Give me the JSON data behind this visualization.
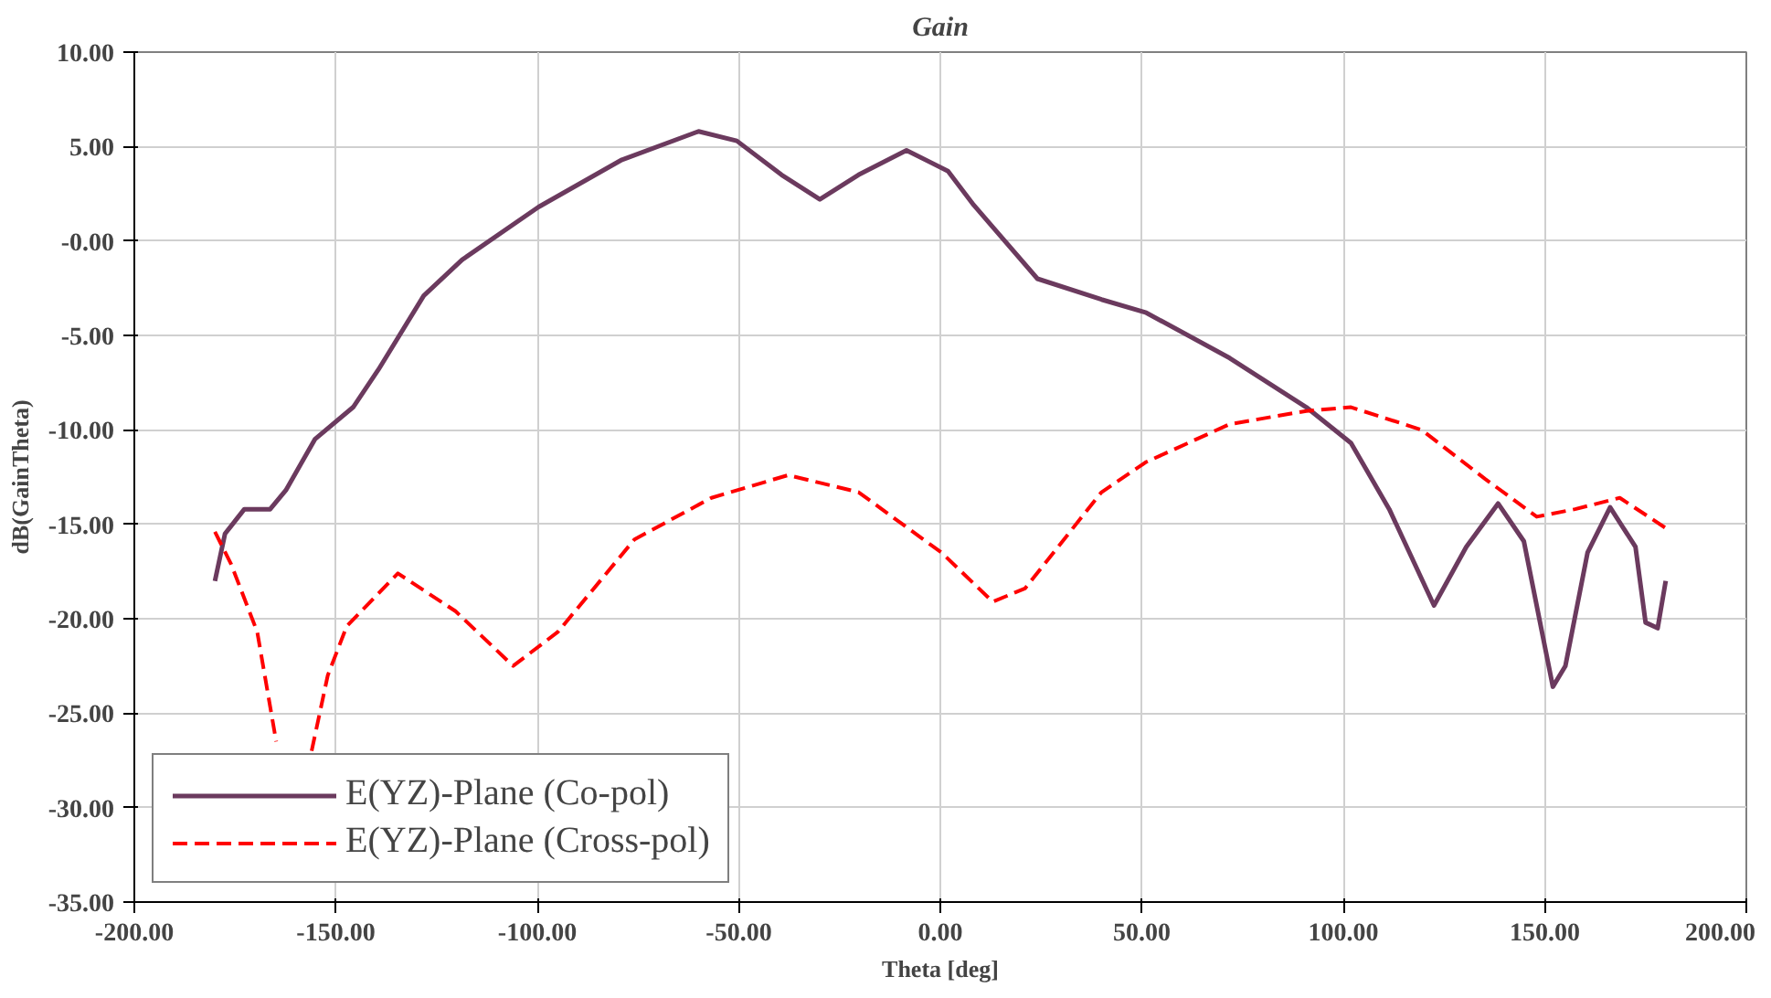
{
  "chart_data": {
    "type": "line",
    "title": "Gain",
    "xlabel": "Theta [deg]",
    "ylabel": "dB(GainTheta)",
    "xlim": [
      -200,
      200
    ],
    "xticks": [
      {
        "value": -200,
        "label": "-200.00"
      },
      {
        "value": -150,
        "label": "-150.00"
      },
      {
        "value": -100,
        "label": "-100.00"
      },
      {
        "value": -50,
        "label": "-50.00"
      },
      {
        "value": 0,
        "label": "0.00"
      },
      {
        "value": 50,
        "label": "50.00"
      },
      {
        "value": 100,
        "label": "100.00"
      },
      {
        "value": 150,
        "label": "150.00"
      },
      {
        "value": 200,
        "label": "200.00"
      }
    ],
    "ylim": [
      -35,
      10
    ],
    "yticks": [
      {
        "value": 10,
        "label": "10.00"
      },
      {
        "value": 5,
        "label": "5.00"
      },
      {
        "value": 0,
        "label": "-0.00"
      },
      {
        "value": -5,
        "label": "-5.00"
      },
      {
        "value": -10,
        "label": "-10.00"
      },
      {
        "value": -15,
        "label": "-15.00"
      },
      {
        "value": -20,
        "label": "-20.00"
      },
      {
        "value": -25,
        "label": "-25.00"
      },
      {
        "value": -30,
        "label": "-30.00"
      },
      {
        "value": -35,
        "label": "-35.00"
      }
    ],
    "grid": true,
    "legend": "bottom left",
    "series": [
      {
        "name": "E(YZ)-Plane (Co-pol)",
        "color": "#6b3a5e",
        "line_style": "solid",
        "x": [
          -180,
          -177.5,
          -172.7,
          -166.3,
          -162.4,
          -155.2,
          -145.7,
          -139.4,
          -128.2,
          -118.7,
          -99.7,
          -79,
          -60,
          -50.5,
          -39.4,
          -29.9,
          -20.3,
          -8.4,
          1.9,
          8.3,
          24.1,
          40,
          51.1,
          71.8,
          90.8,
          101.9,
          111.4,
          122.5,
          130.5,
          138.4,
          144.8,
          152,
          155.1,
          160.6,
          166.2,
          172.5,
          175,
          178,
          180
        ],
        "values": [
          -18,
          -15.5,
          -14.2,
          -14.2,
          -13.2,
          -10.5,
          -8.8,
          -6.8,
          -2.9,
          -1.0,
          1.8,
          4.3,
          5.8,
          5.3,
          3.5,
          2.2,
          3.5,
          4.8,
          3.7,
          1.9,
          -2.0,
          -3.1,
          -3.8,
          -6.2,
          -8.8,
          -10.7,
          -14.2,
          -19.3,
          -16.2,
          -13.9,
          -15.9,
          -23.6,
          -22.5,
          -16.5,
          -14.1,
          -16.2,
          -20.2,
          -20.5,
          -18
        ]
      },
      {
        "name": "E(YZ)-Plane (Cross-pol)",
        "color": "#ff0000",
        "line_style": "dashed",
        "x": [
          -180,
          -176,
          -169.5,
          -164.8,
          -160,
          -156,
          -152,
          -147.3,
          -134.6,
          -120.3,
          -106,
          -94.9,
          -75.9,
          -56.8,
          -37.8,
          -20.3,
          0.3,
          13,
          21,
          40,
          51.1,
          71.8,
          90.8,
          101.9,
          119.4,
          135.2,
          148,
          157.5,
          168.6,
          180
        ],
        "values": [
          -15.4,
          -17.1,
          -20.7,
          -26.5,
          null,
          -27,
          -23,
          -20.4,
          -17.6,
          -19.6,
          -22.5,
          -20.7,
          -15.8,
          -13.6,
          -12.4,
          -13.3,
          -16.5,
          -19.1,
          -18.4,
          -13.3,
          -11.7,
          -9.7,
          -9.0,
          -8.8,
          -10.0,
          -12.6,
          -14.6,
          -14.2,
          -13.6,
          -15.2
        ]
      }
    ]
  }
}
